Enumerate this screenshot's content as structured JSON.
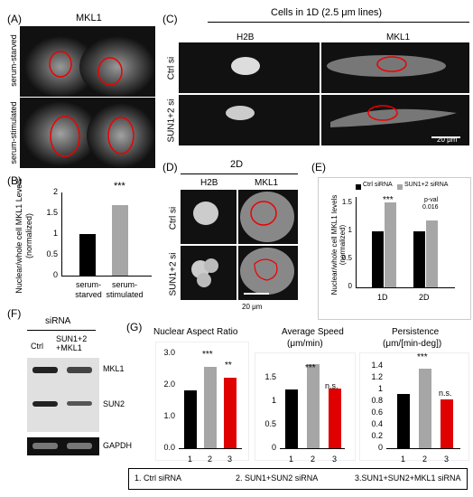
{
  "panels": {
    "A": {
      "letter": "(A)",
      "title": "MKL1",
      "row_labels": [
        "serum-starved",
        "serum-stimulated"
      ]
    },
    "B": {
      "letter": "(B)",
      "ylabel": "Nuclear/whole cell MKL1 Levels (normalized)",
      "categories": [
        "serum-starved",
        "serum-stimulated"
      ],
      "sig": "***",
      "yticks": [
        "0",
        "0.5",
        "1",
        "1.5",
        "2"
      ]
    },
    "C": {
      "letter": "(C)",
      "header": "Cells in 1D (2.5 μm lines)",
      "col_labels": [
        "H2B",
        "MKL1"
      ],
      "row_labels": [
        "Ctrl si",
        "SUN1+2 si"
      ],
      "scalebar": "20 μm"
    },
    "D": {
      "letter": "(D)",
      "header": "2D",
      "col_labels": [
        "H2B",
        "MKL1"
      ],
      "row_labels": [
        "Ctrl si",
        "SUN1+2 si"
      ],
      "scalebar": "20 μm"
    },
    "E": {
      "letter": "(E)",
      "legend": [
        "Ctrl siRNA",
        "SUN1+2 siRNA"
      ],
      "ylabel": "Nuclear/whole cell MKL1 levels (normalized)",
      "categories": [
        "1D",
        "2D"
      ],
      "sig": "***",
      "pval": "p-val",
      "pval_value": "0.016",
      "yticks": [
        "0",
        "0.5",
        "1",
        "1.5"
      ]
    },
    "F": {
      "letter": "(F)",
      "header": "siRNA",
      "lanes": [
        "Ctrl",
        "SUN1+2 +MKL1"
      ],
      "bands": [
        "MKL1",
        "SUN2",
        "GAPDH"
      ]
    },
    "G": {
      "letter": "(G)",
      "subplots": [
        {
          "title": "Nuclear Aspect Ratio",
          "title2": "",
          "yticks": [
            "0.0",
            "1.0",
            "2.0",
            "3.0"
          ],
          "sigs": [
            "",
            "***",
            "**"
          ]
        },
        {
          "title": "Average Speed",
          "title2": "(μm/min)",
          "yticks": [
            "0",
            "0.5",
            "1",
            "1.5"
          ],
          "sigs": [
            "",
            "***",
            "n.s."
          ]
        },
        {
          "title": "Persistence",
          "title2": "(μm/[min-deg])",
          "yticks": [
            "0",
            "0.2",
            "0.4",
            "0.6",
            "0.8",
            "1",
            "1.2",
            "1.4"
          ],
          "sigs": [
            "",
            "***",
            "n.s."
          ]
        }
      ],
      "xticks": [
        "1",
        "2",
        "3"
      ],
      "legend": [
        "1. Ctrl siRNA",
        "2. SUN1+SUN2 siRNA",
        "3.SUN1+SUN2+MKL1 siRNA"
      ]
    }
  },
  "colors": {
    "black": "#000000",
    "gray": "#a6a6a6",
    "red": "#e00000"
  },
  "chart_data": [
    {
      "type": "bar",
      "title": "",
      "categories": [
        "serum-starved",
        "serum-stimulated"
      ],
      "values": [
        1.0,
        1.7
      ],
      "ylim": [
        0,
        2
      ],
      "ylabel": "Nuclear/whole cell MKL1 Levels (normalized)"
    },
    {
      "type": "bar",
      "categories": [
        "1D",
        "2D"
      ],
      "series": [
        {
          "name": "Ctrl siRNA",
          "values": [
            1.0,
            1.0
          ]
        },
        {
          "name": "SUN1+2 siRNA",
          "values": [
            1.5,
            1.18
          ]
        }
      ],
      "ylim": [
        0,
        1.6
      ],
      "ylabel": "Nuclear/whole cell MKL1 levels (normalized)"
    },
    {
      "type": "bar",
      "title": "Nuclear Aspect Ratio",
      "categories": [
        "1",
        "2",
        "3"
      ],
      "values": [
        1.8,
        2.55,
        2.2
      ],
      "ylim": [
        0,
        3
      ]
    },
    {
      "type": "bar",
      "title": "Average Speed",
      "categories": [
        "1",
        "2",
        "3"
      ],
      "values": [
        1.1,
        1.58,
        1.12
      ],
      "ylim": [
        0,
        1.8
      ]
    },
    {
      "type": "bar",
      "title": "Persistence",
      "categories": [
        "1",
        "2",
        "3"
      ],
      "values": [
        0.87,
        1.27,
        0.78
      ],
      "ylim": [
        0,
        1.4
      ]
    }
  ]
}
